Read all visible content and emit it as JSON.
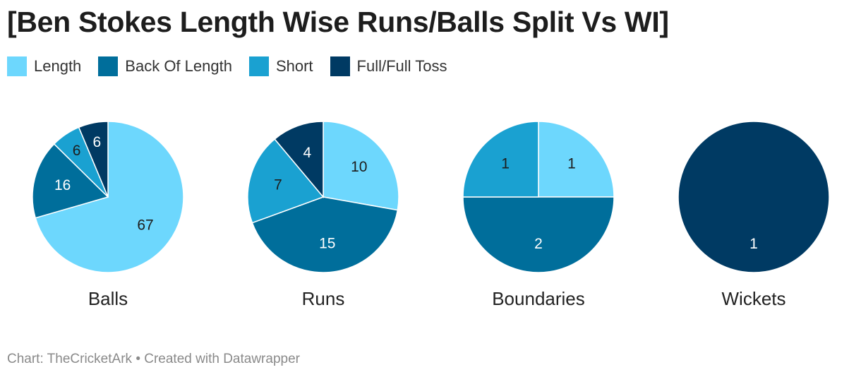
{
  "title": "[Ben Stokes Length Wise Runs/Balls Split Vs WI]",
  "footer": {
    "source": "Chart: TheCricketArk",
    "separator": "•",
    "credit": "Created with Datawrapper"
  },
  "colors": {
    "Length": "#6dd7fd",
    "Back Of Length": "#006e9b",
    "Short": "#1aa1d1",
    "Full/Full Toss": "#003a63"
  },
  "chart_data": {
    "type": "pie",
    "legend": [
      "Length",
      "Back Of Length",
      "Short",
      "Full/Full Toss"
    ],
    "legend_placement": "top-left",
    "charts": [
      {
        "name": "Balls",
        "slices": [
          {
            "category": "Length",
            "value": 67
          },
          {
            "category": "Back Of Length",
            "value": 16
          },
          {
            "category": "Short",
            "value": 6
          },
          {
            "category": "Full/Full Toss",
            "value": 6
          }
        ]
      },
      {
        "name": "Runs",
        "slices": [
          {
            "category": "Length",
            "value": 10
          },
          {
            "category": "Back Of Length",
            "value": 15
          },
          {
            "category": "Short",
            "value": 7
          },
          {
            "category": "Full/Full Toss",
            "value": 4
          }
        ]
      },
      {
        "name": "Boundaries",
        "slices": [
          {
            "category": "Length",
            "value": 1
          },
          {
            "category": "Back Of Length",
            "value": 2
          },
          {
            "category": "Short",
            "value": 1
          }
        ]
      },
      {
        "name": "Wickets",
        "slices": [
          {
            "category": "Full/Full Toss",
            "value": 1
          }
        ]
      }
    ]
  }
}
